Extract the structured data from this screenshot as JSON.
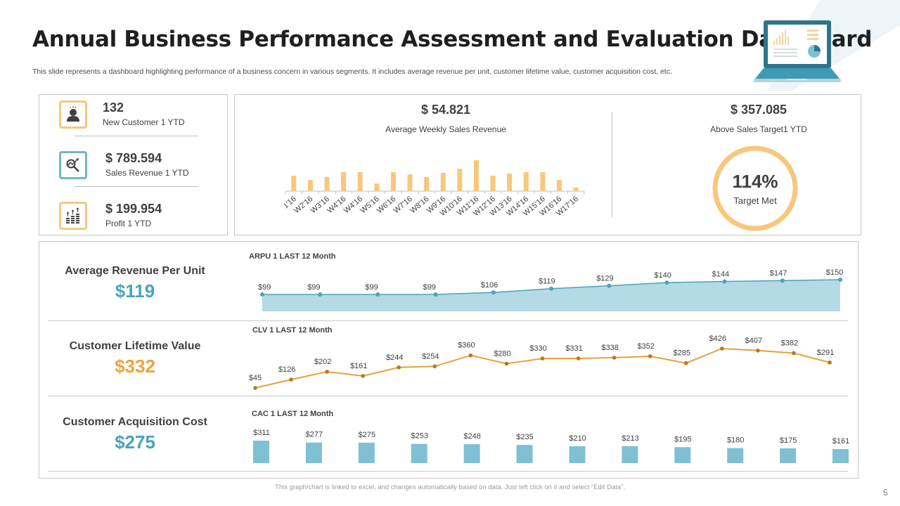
{
  "header": {
    "title": "Annual Business Performance Assessment and Evaluation Dashboard",
    "subtitle": "This slide represents a dashboard highlighting performance of a business concern in various segments. It includes average revenue per unit, customer lifetime value, customer acquisition cost, etc.",
    "illustration_icon": "laptop-dashboard-icon"
  },
  "kpis": [
    {
      "value": "132",
      "label": "New Customer  1 YTD",
      "icon": "customer-icon",
      "color": "#f3c97a"
    },
    {
      "value": "$ 789.594",
      "label": "Sales Revenue  1 YTD",
      "icon": "revenue-analysis-icon",
      "color": "#6fb7c9"
    },
    {
      "value": "$ 199.954",
      "label": "Profit  1 YTD",
      "icon": "coins-growth-icon",
      "color": "#f3c97a"
    }
  ],
  "weekly": {
    "value": "$ 54.821",
    "label": "Average  Weekly Sales Revenue"
  },
  "target": {
    "value": "$ 357.085",
    "label": "Above  Sales Target1  YTD",
    "percent_text": "114%",
    "percent_label": "Target Met",
    "ring_color": "#f7c77c"
  },
  "metrics": {
    "arpu": {
      "label": "Average Revenue Per Unit",
      "value": "$119",
      "color": "#4ba3ba"
    },
    "clv": {
      "label": "Customer Lifetime Value",
      "value": "$332",
      "color": "#f0a33a"
    },
    "cac": {
      "label": "Customer Acquisition Cost",
      "value": "$275",
      "color": "#4ba3ba"
    }
  },
  "chart_data": [
    {
      "type": "bar",
      "title": "Average Weekly Sales Revenue",
      "categories": [
        "W1'16",
        "W2'16",
        "W3'16",
        "W4'16",
        "W4'16",
        "W5'16",
        "W6'16",
        "W7'16",
        "W8'16",
        "W9'16",
        "W10'16",
        "W11'16",
        "W12'16",
        "W13'16",
        "W14'16",
        "W15'16",
        "W16'16",
        "W17'16"
      ],
      "values": [
        22,
        16,
        20,
        27,
        27,
        11,
        27,
        24,
        20,
        26,
        32,
        44,
        22,
        25,
        27,
        27,
        16,
        5
      ],
      "units": "relative (no axis shown)",
      "color": "#f7c77c",
      "grid": false
    },
    {
      "type": "area",
      "title": "ARPU  1 LAST  12 Month",
      "categories": [
        "1",
        "2",
        "3",
        "4",
        "5",
        "6",
        "7",
        "8",
        "9",
        "10",
        "11"
      ],
      "values": [
        99,
        99,
        99,
        99,
        106,
        119,
        129,
        140,
        144,
        147,
        150
      ],
      "labels": [
        "$99",
        "$99",
        "$99",
        "$99",
        "$106",
        "$119",
        "$129",
        "$140",
        "$144",
        "$147",
        "$150"
      ],
      "color": "#4ba3ba",
      "fill": "#b3dae5",
      "ylim": [
        0,
        160
      ]
    },
    {
      "type": "line",
      "title": "CLV  1 LAST  12 Month",
      "categories": [
        "1",
        "2",
        "3",
        "4",
        "5",
        "6",
        "7",
        "8",
        "9",
        "10",
        "11",
        "12",
        "13",
        "14",
        "15",
        "16",
        "17"
      ],
      "values": [
        45,
        126,
        202,
        161,
        244,
        254,
        360,
        280,
        330,
        331,
        338,
        352,
        285,
        426,
        407,
        382,
        291
      ],
      "labels": [
        "$45",
        "$126",
        "$202",
        "$161",
        "$244",
        "$254",
        "$360",
        "$280",
        "$330",
        "$331",
        "$338",
        "$352",
        "$285",
        "$426",
        "$407",
        "$382",
        "$291"
      ],
      "color": "#e3a33d",
      "ylim": [
        0,
        450
      ]
    },
    {
      "type": "bar",
      "title": "CAC  1 LAST  12 Month",
      "categories": [
        "1",
        "2",
        "3",
        "4",
        "5",
        "6",
        "7",
        "8",
        "9",
        "10",
        "11",
        "12"
      ],
      "values": [
        311,
        277,
        275,
        253,
        248,
        235,
        210,
        213,
        195,
        180,
        175,
        161
      ],
      "labels": [
        "$311",
        "$277",
        "$275",
        "$253",
        "$248",
        "$235",
        "$210",
        "$213",
        "$195",
        "$180",
        "$175",
        "$161"
      ],
      "color": "#7fc0d3"
    }
  ],
  "footer": {
    "note": "This graph/chart is linked to excel, and changes automatically based on data. Just left click on it and select “Edit Data”.",
    "page_number": "5"
  }
}
